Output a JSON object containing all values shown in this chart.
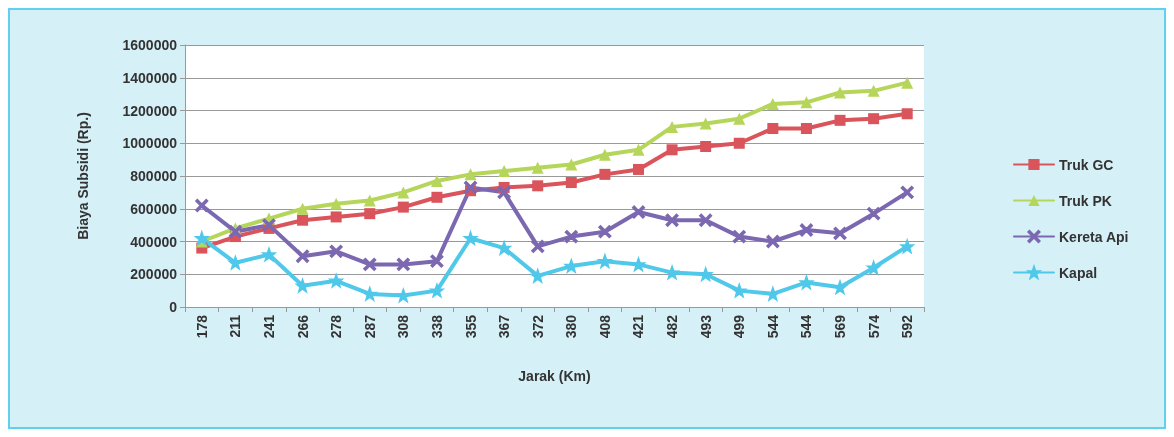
{
  "chart_data": {
    "type": "line",
    "xlabel": "Jarak (Km)",
    "ylabel": "Biaya Subsidi (Rp.)",
    "categories": [
      "178",
      "211",
      "241",
      "266",
      "278",
      "287",
      "308",
      "338",
      "355",
      "367",
      "372",
      "380",
      "408",
      "421",
      "482",
      "493",
      "499",
      "544",
      "544",
      "569",
      "574",
      "592"
    ],
    "ylim": [
      0,
      1600000
    ],
    "yticks": [
      0,
      200000,
      400000,
      600000,
      800000,
      1000000,
      1200000,
      1400000,
      1600000
    ],
    "grid": "y",
    "legend": "right",
    "series": [
      {
        "name": "Truk GC",
        "color": "#d9545b",
        "marker": "square",
        "values": [
          360000,
          430000,
          480000,
          530000,
          550000,
          570000,
          610000,
          670000,
          710000,
          730000,
          740000,
          760000,
          810000,
          840000,
          960000,
          980000,
          1000000,
          1090000,
          1090000,
          1140000,
          1150000,
          1180000
        ]
      },
      {
        "name": "Truk PK",
        "color": "#b5d65a",
        "marker": "triangle",
        "values": [
          400000,
          480000,
          540000,
          600000,
          630000,
          650000,
          700000,
          770000,
          810000,
          830000,
          850000,
          870000,
          930000,
          960000,
          1100000,
          1120000,
          1150000,
          1240000,
          1250000,
          1310000,
          1320000,
          1370000
        ]
      },
      {
        "name": "Kereta Api",
        "color": "#7b68b0",
        "marker": "cross",
        "values": [
          620000,
          460000,
          500000,
          310000,
          340000,
          260000,
          260000,
          280000,
          730000,
          700000,
          370000,
          430000,
          460000,
          580000,
          530000,
          530000,
          430000,
          400000,
          470000,
          450000,
          570000,
          700000
        ]
      },
      {
        "name": "Kapal",
        "color": "#4fc8ea",
        "marker": "star",
        "values": [
          420000,
          270000,
          320000,
          130000,
          160000,
          80000,
          70000,
          100000,
          420000,
          360000,
          190000,
          250000,
          280000,
          260000,
          210000,
          200000,
          100000,
          80000,
          150000,
          120000,
          240000,
          370000
        ]
      }
    ]
  }
}
